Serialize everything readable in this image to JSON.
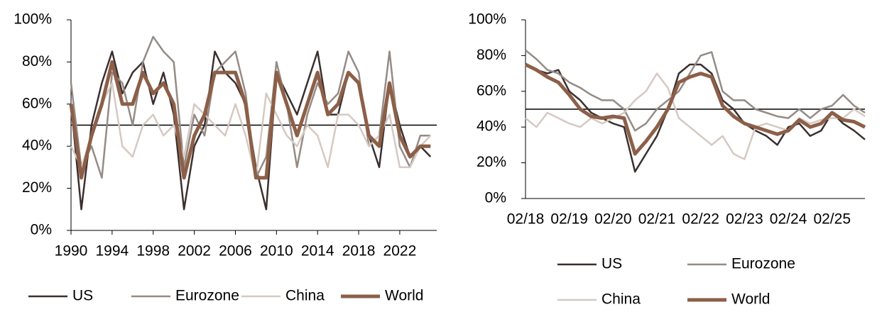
{
  "chart_data": [
    {
      "type": "line",
      "x": [
        1990,
        1991,
        1992,
        1993,
        1994,
        1995,
        1996,
        1997,
        1998,
        1999,
        2000,
        2001,
        2002,
        2003,
        2004,
        2005,
        2006,
        2007,
        2008,
        2009,
        2010,
        2011,
        2012,
        2013,
        2014,
        2015,
        2016,
        2017,
        2018,
        2019,
        2020,
        2021,
        2022,
        2023,
        2024,
        2025
      ],
      "xlim": [
        1990,
        2025.6
      ],
      "xticks": [
        1990,
        1994,
        1998,
        2002,
        2006,
        2010,
        2014,
        2018,
        2022
      ],
      "ylim": [
        0,
        100
      ],
      "yticks": [
        {
          "value": 0,
          "label": "0%"
        },
        {
          "value": 20,
          "label": "20%"
        },
        {
          "value": 40,
          "label": "40%"
        },
        {
          "value": 60,
          "label": "60%"
        },
        {
          "value": 80,
          "label": "80%"
        },
        {
          "value": 100,
          "label": "100%"
        }
      ],
      "reference_line": 50,
      "series": [
        {
          "name": "US",
          "color": "#3b302f",
          "values": [
            60,
            10,
            50,
            70,
            85,
            65,
            75,
            80,
            60,
            75,
            55,
            10,
            40,
            50,
            85,
            75,
            70,
            60,
            30,
            10,
            75,
            65,
            55,
            70,
            85,
            55,
            55,
            75,
            70,
            45,
            30,
            70,
            50,
            35,
            40,
            35
          ]
        },
        {
          "name": "Eurozone",
          "color": "#958b85",
          "values": [
            70,
            30,
            40,
            25,
            75,
            70,
            50,
            80,
            92,
            85,
            80,
            30,
            55,
            45,
            75,
            80,
            85,
            65,
            25,
            35,
            80,
            60,
            30,
            55,
            70,
            60,
            65,
            85,
            75,
            40,
            45,
            85,
            40,
            30,
            45,
            45
          ]
        },
        {
          "name": "China",
          "color": "#d6c9c2",
          "values": [
            40,
            30,
            45,
            60,
            70,
            40,
            35,
            50,
            55,
            45,
            50,
            35,
            60,
            55,
            50,
            45,
            60,
            45,
            25,
            65,
            55,
            45,
            40,
            50,
            45,
            30,
            55,
            55,
            50,
            40,
            45,
            55,
            30,
            30,
            40,
            45
          ]
        },
        {
          "name": "World",
          "color": "#8c5f48",
          "values": [
            60,
            25,
            45,
            60,
            80,
            60,
            60,
            75,
            65,
            70,
            60,
            25,
            45,
            55,
            75,
            75,
            75,
            60,
            25,
            25,
            75,
            60,
            45,
            60,
            75,
            55,
            60,
            75,
            70,
            45,
            40,
            70,
            45,
            35,
            40,
            40
          ]
        }
      ]
    },
    {
      "type": "line",
      "categories": [
        "02/18",
        null,
        null,
        null,
        "02/19",
        null,
        null,
        null,
        "02/20",
        null,
        null,
        null,
        "02/21",
        null,
        null,
        null,
        "02/22",
        null,
        null,
        null,
        "02/23",
        null,
        null,
        null,
        "02/24",
        null,
        null,
        null,
        "02/25",
        null,
        null,
        null
      ],
      "ylim": [
        0,
        100
      ],
      "yticks": [
        {
          "value": 0,
          "label": "0%"
        },
        {
          "value": 20,
          "label": "20%"
        },
        {
          "value": 40,
          "label": "40%"
        },
        {
          "value": 60,
          "label": "60%"
        },
        {
          "value": 80,
          "label": "80%"
        },
        {
          "value": 100,
          "label": "100%"
        }
      ],
      "reference_line": 50,
      "series": [
        {
          "name": "US",
          "color": "#3b302f",
          "values": [
            75,
            72,
            70,
            72,
            60,
            55,
            48,
            45,
            42,
            40,
            15,
            25,
            35,
            50,
            70,
            75,
            75,
            70,
            55,
            50,
            42,
            38,
            35,
            30,
            40,
            42,
            35,
            38,
            48,
            42,
            38,
            33
          ]
        },
        {
          "name": "Eurozone",
          "color": "#958b85",
          "values": [
            83,
            78,
            72,
            70,
            65,
            62,
            58,
            55,
            55,
            50,
            38,
            42,
            50,
            55,
            60,
            70,
            80,
            82,
            60,
            55,
            55,
            50,
            48,
            46,
            45,
            50,
            45,
            50,
            52,
            58,
            52,
            48
          ]
        },
        {
          "name": "China",
          "color": "#d6c9c2",
          "values": [
            45,
            40,
            48,
            45,
            42,
            40,
            45,
            42,
            45,
            48,
            55,
            60,
            70,
            62,
            45,
            40,
            35,
            30,
            35,
            25,
            22,
            40,
            42,
            40,
            38,
            45,
            42,
            44,
            45,
            45,
            50,
            46
          ]
        },
        {
          "name": "World",
          "color": "#8c5f48",
          "values": [
            75,
            72,
            68,
            65,
            58,
            50,
            46,
            45,
            46,
            45,
            25,
            32,
            40,
            50,
            65,
            68,
            70,
            68,
            52,
            46,
            42,
            40,
            38,
            36,
            38,
            44,
            40,
            42,
            48,
            44,
            43,
            40
          ]
        }
      ]
    }
  ]
}
